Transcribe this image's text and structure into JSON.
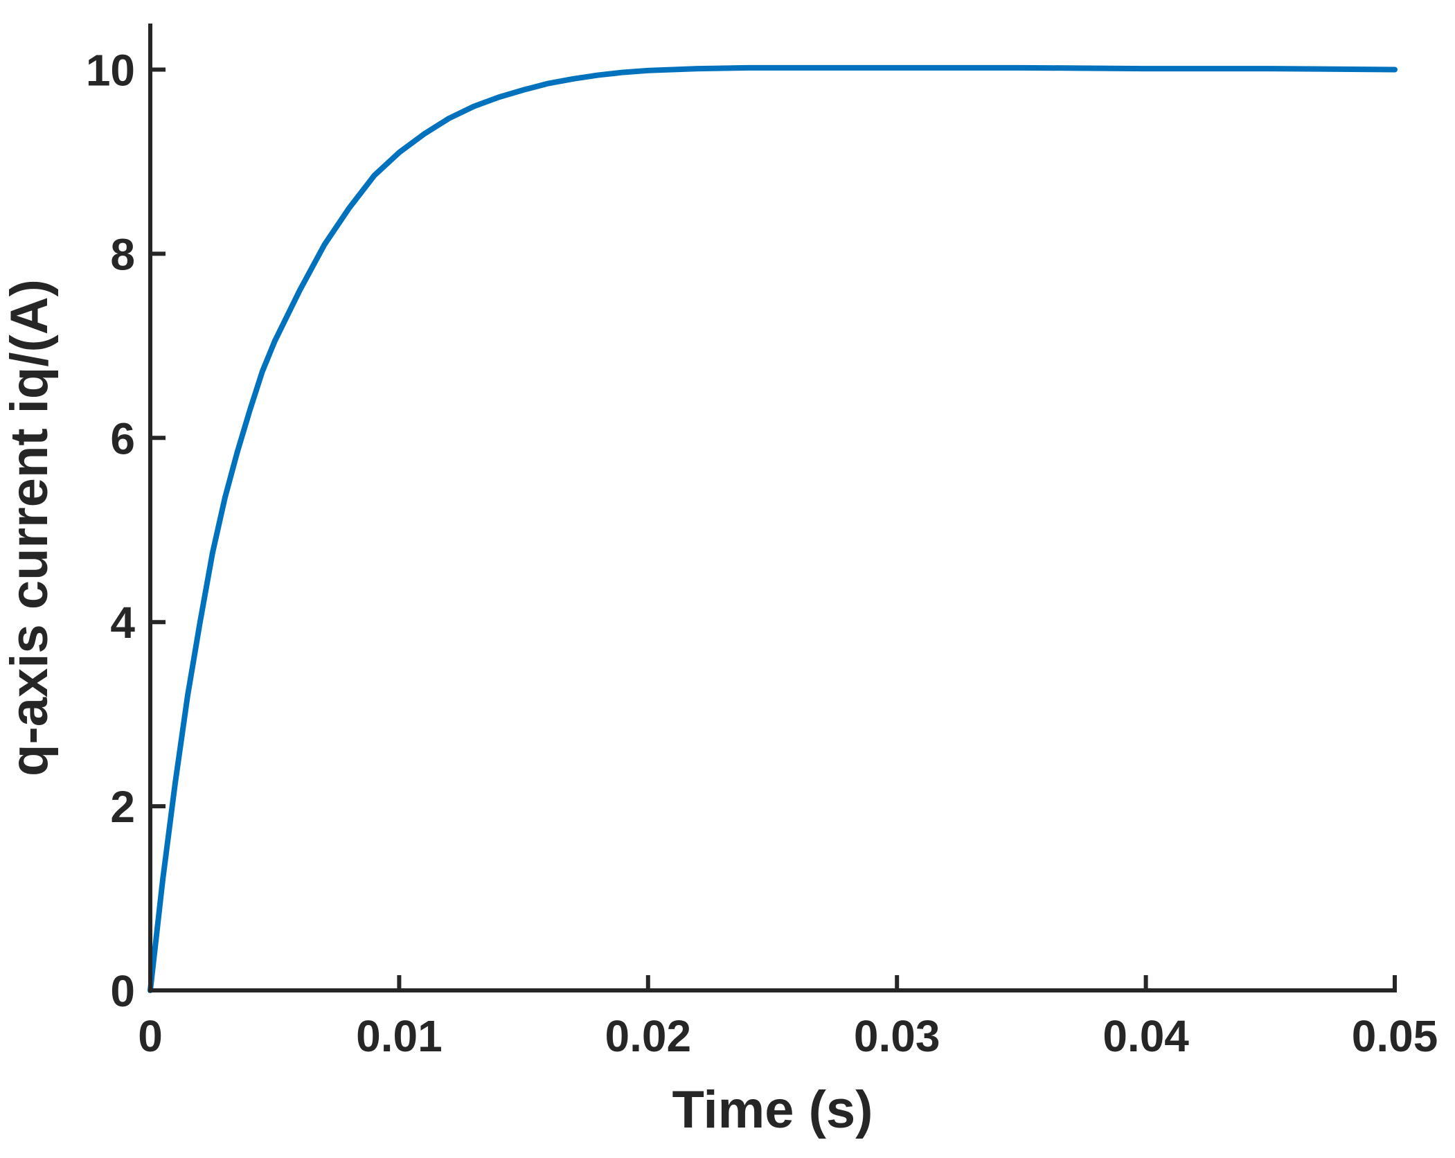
{
  "chart_data": {
    "type": "line",
    "xlabel": "Time (s)",
    "ylabel": "q-axis current iq/(A)",
    "xlim": [
      0,
      0.05
    ],
    "ylim": [
      0,
      10.5
    ],
    "xticks": [
      0,
      0.01,
      0.02,
      0.03,
      0.04,
      0.05
    ],
    "xtick_labels": [
      "0",
      "0.01",
      "0.02",
      "0.03",
      "0.04",
      "0.05"
    ],
    "yticks": [
      0,
      2,
      4,
      6,
      8,
      10
    ],
    "ytick_labels": [
      "0",
      "2",
      "4",
      "6",
      "8",
      "10"
    ],
    "grid": false,
    "colors": {
      "axis": "#262626",
      "series": "#0072BD"
    },
    "series": [
      {
        "x": [
          0,
          0.0005,
          0.001,
          0.0015,
          0.002,
          0.0025,
          0.003,
          0.0035,
          0.004,
          0.0045,
          0.005,
          0.006,
          0.007,
          0.008,
          0.009,
          0.01,
          0.011,
          0.012,
          0.013,
          0.014,
          0.015,
          0.016,
          0.017,
          0.018,
          0.019,
          0.02,
          0.022,
          0.024,
          0.026,
          0.028,
          0.03,
          0.035,
          0.04,
          0.045,
          0.05
        ],
        "values": [
          0,
          1.2,
          2.25,
          3.2,
          4.0,
          4.75,
          5.35,
          5.85,
          6.3,
          6.72,
          7.05,
          7.6,
          8.1,
          8.5,
          8.85,
          9.1,
          9.3,
          9.47,
          9.6,
          9.7,
          9.78,
          9.85,
          9.9,
          9.94,
          9.97,
          9.99,
          10.01,
          10.02,
          10.02,
          10.02,
          10.02,
          10.02,
          10.01,
          10.01,
          10.0
        ]
      }
    ]
  }
}
